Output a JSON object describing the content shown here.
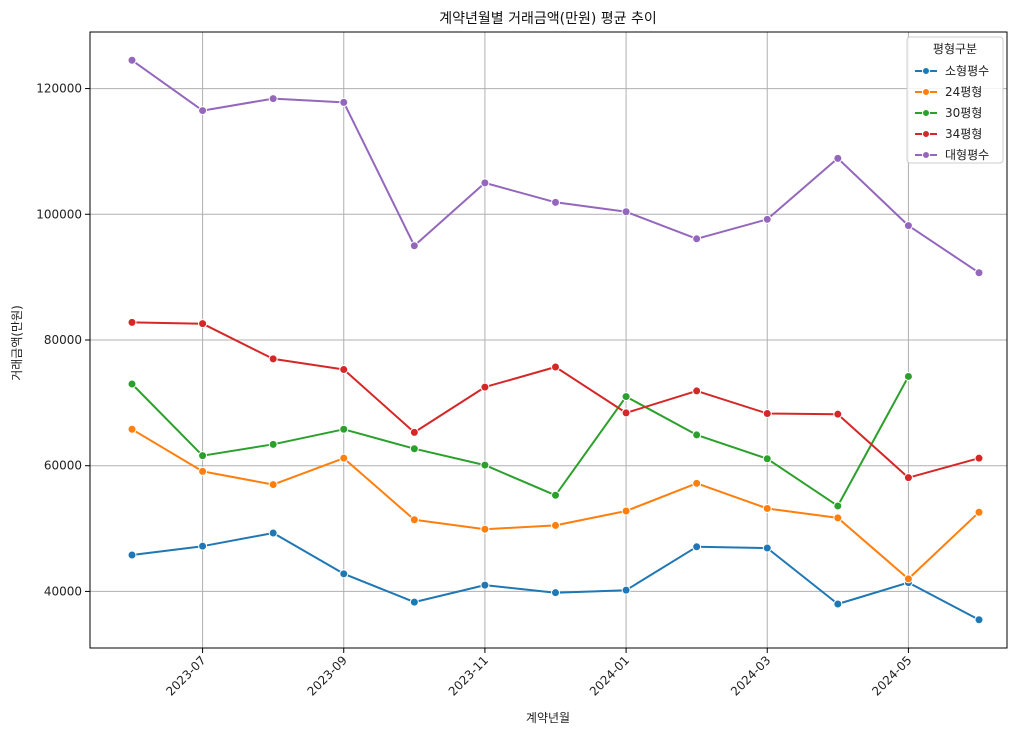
{
  "chart_data": {
    "type": "line",
    "title": "계약년월별 거래금액(만원) 평균 추이",
    "xlabel": "계약년월",
    "ylabel": "거래금액(만원)",
    "x": [
      "2023-06",
      "2023-07",
      "2023-08",
      "2023-09",
      "2023-10",
      "2023-11",
      "2023-12",
      "2024-01",
      "2024-02",
      "2024-03",
      "2024-04",
      "2024-05",
      "2024-06"
    ],
    "x_ticks": [
      "2023-07",
      "2023-09",
      "2023-11",
      "2024-01",
      "2024-03",
      "2024-05"
    ],
    "y_ticks": [
      40000,
      60000,
      80000,
      100000,
      120000
    ],
    "ylim": [
      31000,
      129000
    ],
    "grid": true,
    "legend": {
      "title": "평형구분",
      "placement": "top-right"
    },
    "series": [
      {
        "name": "소형평수",
        "color": "#1f77b4",
        "values": [
          45800,
          47200,
          49300,
          42800,
          38300,
          41000,
          39800,
          40200,
          47100,
          46900,
          38000,
          41400,
          35500
        ]
      },
      {
        "name": "24평형",
        "color": "#ff7f0e",
        "values": [
          65800,
          59100,
          57000,
          61200,
          51400,
          49900,
          50500,
          52800,
          57200,
          53200,
          51700,
          42000,
          52600
        ]
      },
      {
        "name": "30평형",
        "color": "#2ca02c",
        "values": [
          73000,
          61600,
          63400,
          65800,
          62700,
          60100,
          55300,
          71000,
          64900,
          61100,
          53600,
          74200,
          null
        ]
      },
      {
        "name": "34평형",
        "color": "#d62728",
        "values": [
          82800,
          82600,
          77000,
          75300,
          65300,
          72500,
          75700,
          68400,
          71900,
          68300,
          68200,
          58100,
          61200
        ]
      },
      {
        "name": "대형평수",
        "color": "#9467bd",
        "values": [
          124500,
          116500,
          118400,
          117800,
          95000,
          105000,
          101900,
          100400,
          96100,
          99200,
          108900,
          98200,
          90700
        ]
      }
    ]
  }
}
